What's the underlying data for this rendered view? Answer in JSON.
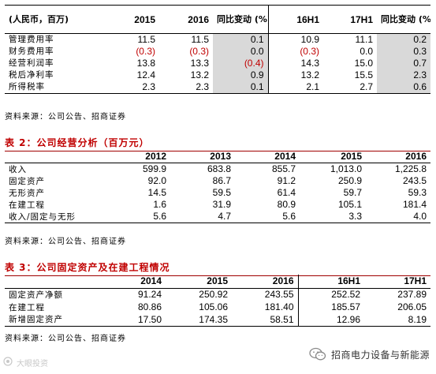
{
  "table1": {
    "headers": [
      "(人民币，百万)",
      "2015",
      "2016",
      "同比变动 (%)",
      "16H1",
      "17H1",
      "同比变动 (%)"
    ],
    "rows": [
      {
        "label": "管理费用率",
        "c1": "11.5",
        "c2": "11.5",
        "c3": "0.1",
        "c4": "10.9",
        "c5": "11.1",
        "c6": "0.2"
      },
      {
        "label": "财务费用率",
        "c1": "(0.3)",
        "c2": "(0.3)",
        "c3": "0.0",
        "c4": "(0.3)",
        "c5": "0.0",
        "c6": "0.3"
      },
      {
        "label": "经营利润率",
        "c1": "13.8",
        "c2": "13.3",
        "c3": "(0.4)",
        "c4": "14.3",
        "c5": "15.0",
        "c6": "0.7"
      },
      {
        "label": "税后净利率",
        "c1": "12.4",
        "c2": "13.2",
        "c3": "0.9",
        "c4": "13.2",
        "c5": "15.5",
        "c6": "2.3"
      },
      {
        "label": "所得税率",
        "c1": "2.3",
        "c2": "2.3",
        "c3": "0.1",
        "c4": "2.1",
        "c5": "2.7",
        "c6": "0.6"
      }
    ],
    "source": "资料来源：公司公告、招商证券"
  },
  "table2": {
    "title": "表 2：公司经营分析（百万元）",
    "headers": [
      "",
      "2012",
      "2013",
      "2014",
      "2015",
      "2016"
    ],
    "rows": [
      {
        "label": "收入",
        "c1": "599.9",
        "c2": "683.8",
        "c3": "855.7",
        "c4": "1,013.0",
        "c5": "1,225.8"
      },
      {
        "label": "固定资产",
        "c1": "92.0",
        "c2": "86.7",
        "c3": "91.2",
        "c4": "250.9",
        "c5": "243.5"
      },
      {
        "label": "无形资产",
        "c1": "14.5",
        "c2": "59.5",
        "c3": "61.4",
        "c4": "59.7",
        "c5": "59.3"
      },
      {
        "label": "在建工程",
        "c1": "1.6",
        "c2": "31.9",
        "c3": "80.9",
        "c4": "105.1",
        "c5": "181.4"
      },
      {
        "label": "收入/固定与无形",
        "c1": "5.6",
        "c2": "4.7",
        "c3": "5.6",
        "c4": "3.3",
        "c5": "4.0"
      }
    ],
    "source": "资料来源：公司公告、招商证券"
  },
  "table3": {
    "title": "表 3：公司固定资产及在建工程情况",
    "headers": [
      "",
      "2014",
      "2015",
      "2016",
      "16H1",
      "17H1"
    ],
    "rows": [
      {
        "label": "固定资产净额",
        "c1": "91.24",
        "c2": "250.92",
        "c3": "243.55",
        "c4": "252.52",
        "c5": "237.89"
      },
      {
        "label": "在建工程",
        "c1": "80.86",
        "c2": "105.06",
        "c3": "181.40",
        "c4": "185.57",
        "c5": "206.05"
      },
      {
        "label": "新增固定资产",
        "c1": "17.50",
        "c2": "174.35",
        "c3": "58.51",
        "c4": "12.96",
        "c5": "8.19"
      }
    ],
    "source": "资料来源：公司公告、招商证券"
  },
  "watermark": {
    "left": "大眼投资",
    "right": "招商电力设备与新能源",
    "icon": "wechat-icon"
  },
  "colors": {
    "negative": "#c00000",
    "title": "#c00000",
    "shade": "#d9d9d9"
  }
}
